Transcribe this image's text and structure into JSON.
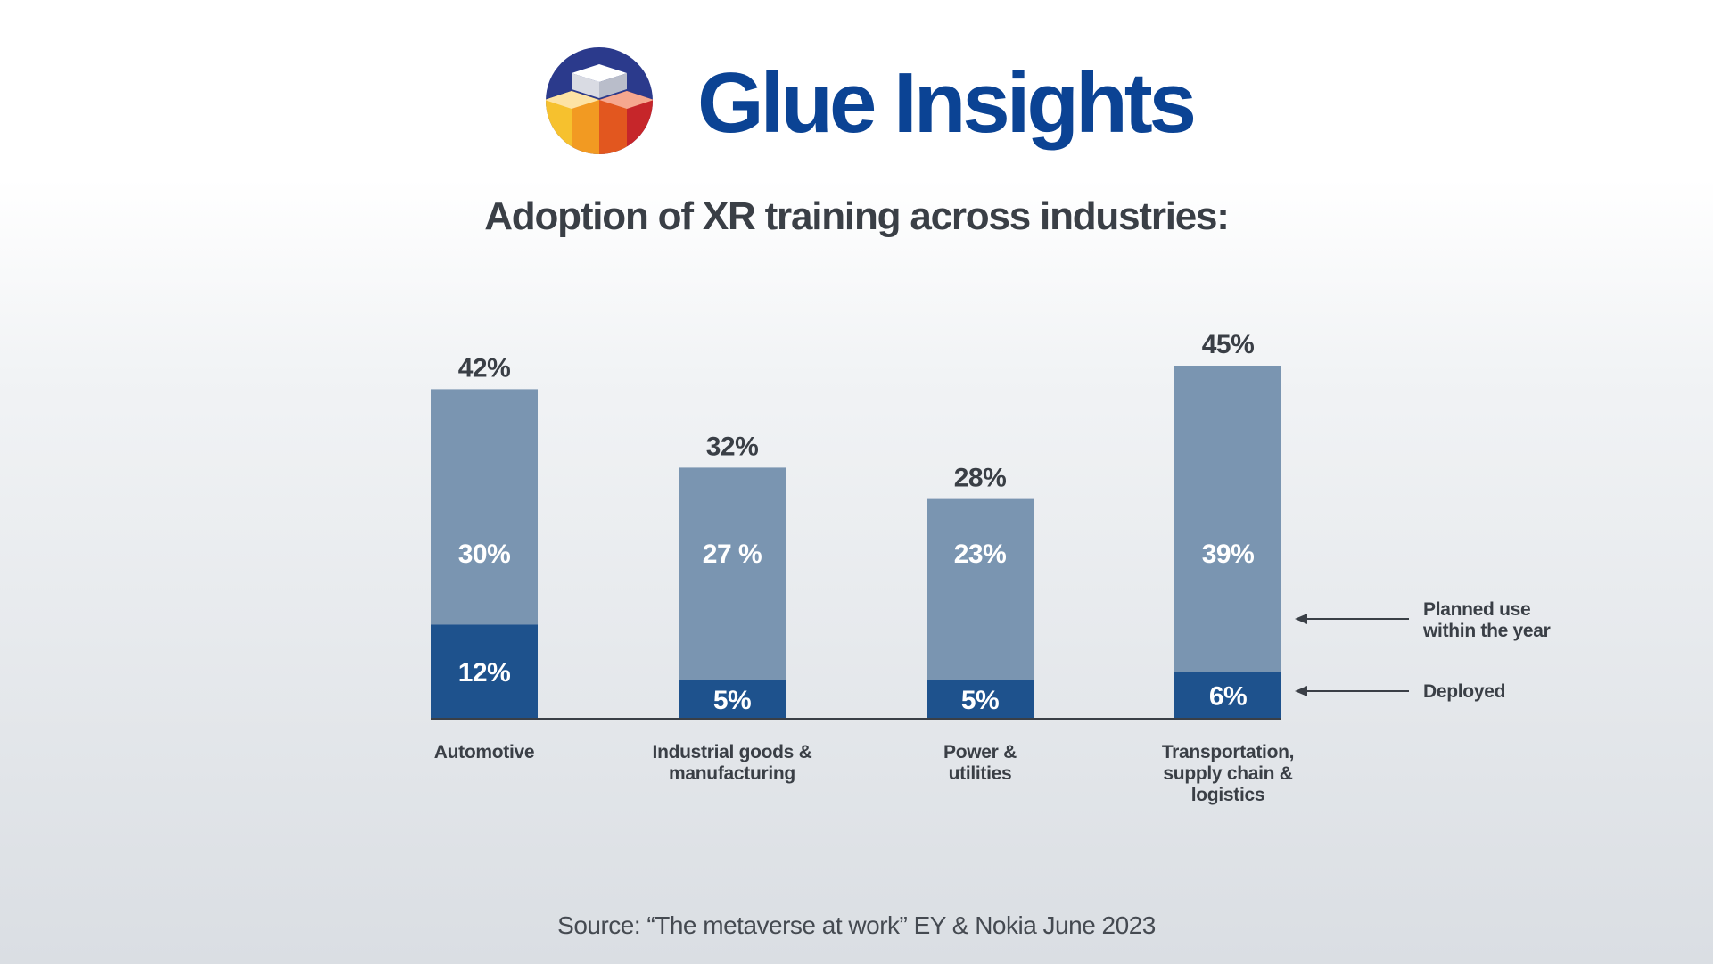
{
  "brand": {
    "name": "Glue Insights",
    "logo_icon": "stacked-cubes-logo-icon",
    "color": "#0b4394"
  },
  "subtitle": "Adoption of XR training across industries:",
  "source": "Source: “The metaverse at work” EY & Nokia June 2023",
  "colors": {
    "planned": "#7a95b1",
    "deployed": "#1e528d",
    "axis": "#3a3f46",
    "text_dark": "#3a3f46",
    "text_light": "#ffffff"
  },
  "chart_data": {
    "type": "bar",
    "stacked": true,
    "categories": [
      [
        "Automotive"
      ],
      [
        "Industrial goods &",
        "manufacturing"
      ],
      [
        "Power &",
        "utilities"
      ],
      [
        "Transportation,",
        "supply chain &",
        "logistics"
      ]
    ],
    "series": [
      {
        "name": "Deployed",
        "values": [
          12,
          5,
          5,
          6
        ],
        "labels": [
          "12%",
          "5%",
          "5%",
          "6%"
        ]
      },
      {
        "name": "Planned use within the year",
        "values": [
          30,
          27,
          23,
          39
        ],
        "labels": [
          "30%",
          "27 %",
          "23%",
          "39%"
        ]
      }
    ],
    "totals": [
      42,
      32,
      28,
      45
    ],
    "total_labels": [
      "42%",
      "32%",
      "28%",
      "45%"
    ],
    "legend": [
      {
        "lines": [
          "Planned use",
          "within the year"
        ]
      },
      {
        "lines": [
          "Deployed"
        ]
      }
    ],
    "legend_placement": "right",
    "xlabel": "",
    "ylabel": "",
    "ylim": [
      0,
      45
    ],
    "grid": false
  }
}
